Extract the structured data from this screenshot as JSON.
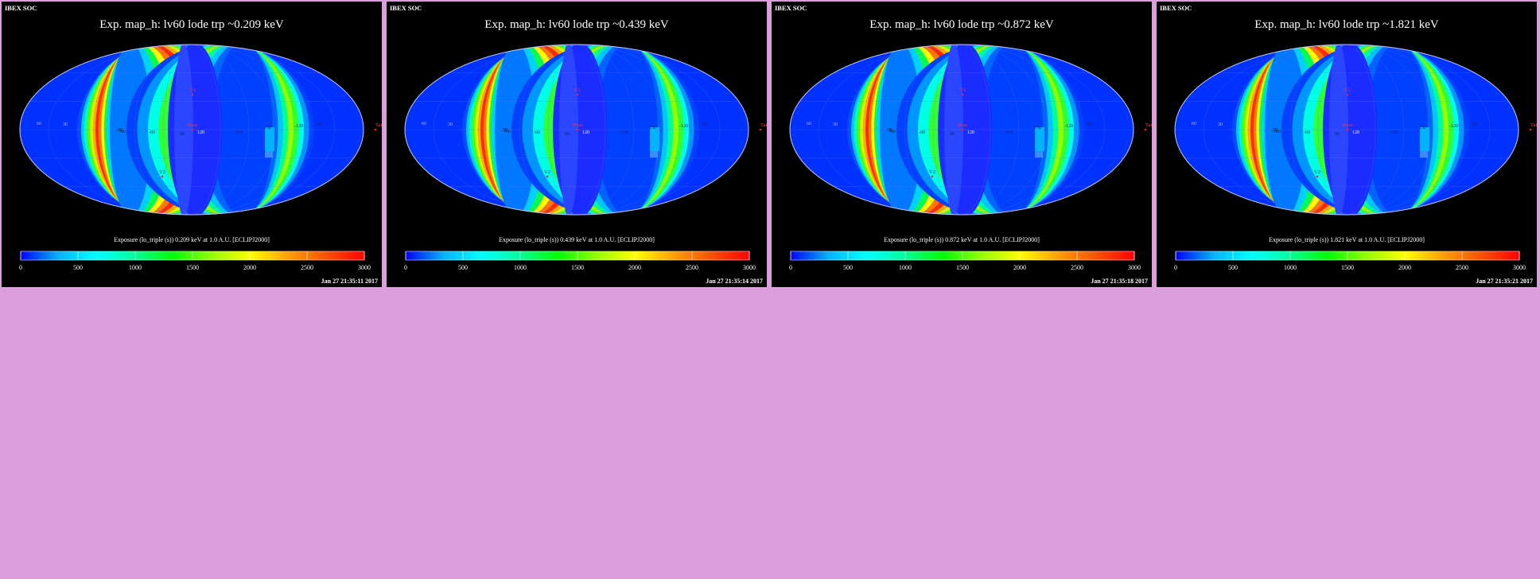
{
  "background_color": "#dc9edc",
  "header_label": "IBEX SOC",
  "colorbar_colors": [
    "#0000ff",
    "#00b4ff",
    "#00ffff",
    "#00ff96",
    "#00ff00",
    "#96ff00",
    "#ffff00",
    "#ffa000",
    "#ff5000",
    "#ff0000"
  ],
  "chart_data": [
    {
      "type": "heatmap",
      "projection": "mollweide",
      "title": "Exp.   map_h: lv60 lode trp ~0.209 keV",
      "colorbar_label": "Exposure (lo_triple (s))  0.209 keV at 1.0 A.U. [ECLIPJ2000]",
      "colorbar_range": [
        0,
        3000
      ],
      "colorbar_ticks": [
        "0",
        "500",
        "1000",
        "1500",
        "2000",
        "2500",
        "3000"
      ],
      "timestamp": "Jan 27 21:35:11 2017",
      "lat_labels": [
        "60",
        "30",
        "-30",
        "-60"
      ],
      "lon_labels": [
        "-30",
        "-60",
        "90",
        "120",
        "-150",
        "150",
        "-120",
        "-90"
      ],
      "markers": [
        "V1",
        "Nose",
        "V2",
        "Tail"
      ]
    },
    {
      "type": "heatmap",
      "projection": "mollweide",
      "title": "Exp.   map_h: lv60 lode trp ~0.439 keV",
      "colorbar_label": "Exposure (lo_triple (s))  0.439 keV at 1.0 A.U. [ECLIPJ2000]",
      "colorbar_range": [
        0,
        3000
      ],
      "colorbar_ticks": [
        "0",
        "500",
        "1000",
        "1500",
        "2000",
        "2500",
        "3000"
      ],
      "timestamp": "Jan 27 21:35:14 2017",
      "lat_labels": [
        "60",
        "30",
        "-30",
        "-60"
      ],
      "lon_labels": [
        "-30",
        "-60",
        "90",
        "120",
        "-150",
        "150",
        "-120",
        "-90"
      ],
      "markers": [
        "V1",
        "Nose",
        "V2",
        "Tail"
      ]
    },
    {
      "type": "heatmap",
      "projection": "mollweide",
      "title": "Exp.   map_h: lv60 lode trp ~0.872 keV",
      "colorbar_label": "Exposure (lo_triple (s))  0.872 keV at 1.0 A.U. [ECLIPJ2000]",
      "colorbar_range": [
        0,
        3000
      ],
      "colorbar_ticks": [
        "0",
        "500",
        "1000",
        "1500",
        "2000",
        "2500",
        "3000"
      ],
      "timestamp": "Jan 27 21:35:18 2017",
      "lat_labels": [
        "60",
        "30",
        "-30",
        "-60"
      ],
      "lon_labels": [
        "-30",
        "-60",
        "90",
        "120",
        "-150",
        "150",
        "-120",
        "-90"
      ],
      "markers": [
        "V1",
        "Nose",
        "V2",
        "Tail"
      ]
    },
    {
      "type": "heatmap",
      "projection": "mollweide",
      "title": "Exp.   map_h: lv60 lode trp ~1.821 keV",
      "colorbar_label": "Exposure (lo_triple (s))  1.821 keV at 1.0 A.U. [ECLIPJ2000]",
      "colorbar_range": [
        0,
        3000
      ],
      "colorbar_ticks": [
        "0",
        "500",
        "1000",
        "1500",
        "2000",
        "2500",
        "3000"
      ],
      "timestamp": "Jan 27 21:35:21 2017",
      "lat_labels": [
        "60",
        "30",
        "-30",
        "-60"
      ],
      "lon_labels": [
        "-30",
        "-60",
        "90",
        "120",
        "-150",
        "150",
        "-120",
        "-90"
      ],
      "markers": [
        "V1",
        "Nose",
        "V2",
        "Tail"
      ]
    }
  ]
}
